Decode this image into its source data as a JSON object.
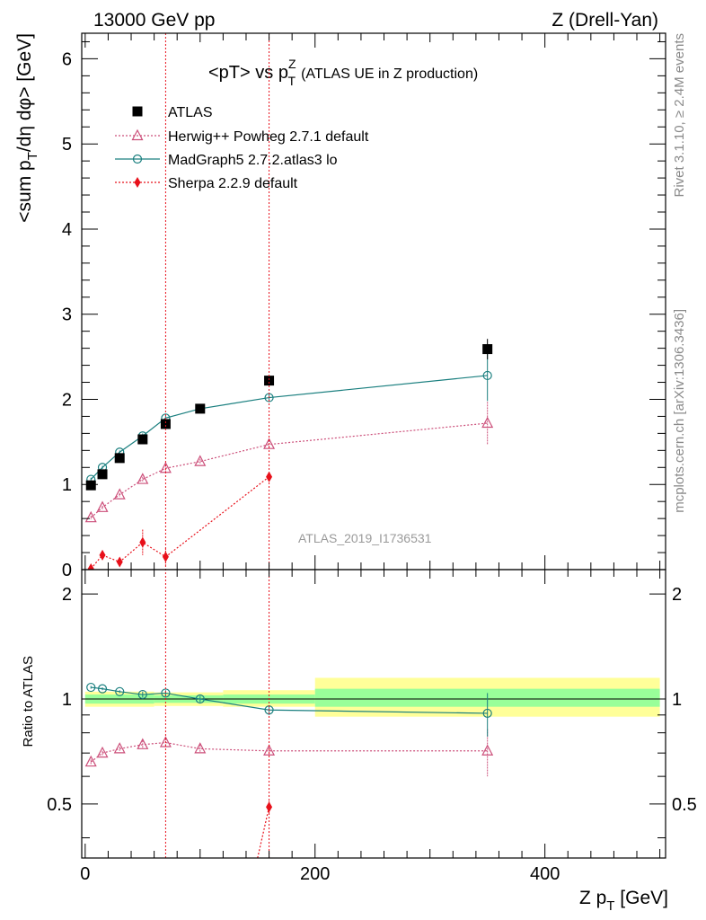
{
  "header": {
    "left": "13000 GeV pp",
    "right": "Z (Drell-Yan)"
  },
  "side_labels": {
    "top": "Rivet 3.1.10, ≥ 2.4M events",
    "bottom": "mcplots.cern.ch [arXiv:1306.3436]"
  },
  "watermark": "ATLAS_2019_I1736531",
  "colors": {
    "atlas": "#000000",
    "herwig": "#cc4f7a",
    "madgraph": "#1a7f7f",
    "sherpa": "#e8101a",
    "band_outer": "#ffff99",
    "band_inner": "#99ff99"
  },
  "chart_data": [
    {
      "type": "scatter",
      "title_main": "<pT> vs p",
      "title_sup": "Z",
      "title_sub": "T",
      "title_tail": "(ATLAS UE in Z production)",
      "ylabel": "<sum p_T/dη dφ> [GeV]",
      "ylim": [
        0,
        6.3
      ],
      "xlim": [
        -3,
        505
      ],
      "yticks": [
        "0",
        "1",
        "2",
        "3",
        "4",
        "5",
        "6"
      ],
      "vlines": [
        70,
        160
      ],
      "series": [
        {
          "name": "ATLAS",
          "x": [
            5,
            15,
            30,
            50,
            70,
            100,
            160,
            350
          ],
          "y": [
            0.99,
            1.12,
            1.31,
            1.53,
            1.71,
            1.89,
            2.22,
            2.59
          ],
          "yerr": [
            0.02,
            0.02,
            0.03,
            0.03,
            0.03,
            0.04,
            0.05,
            0.12
          ]
        },
        {
          "name": "Herwig++ Powheg 2.7.1 default",
          "x": [
            5,
            15,
            30,
            50,
            70,
            100,
            160,
            350
          ],
          "y": [
            0.61,
            0.73,
            0.88,
            1.06,
            1.19,
            1.27,
            1.47,
            1.72
          ],
          "yerr": [
            0.02,
            0.02,
            0.02,
            0.03,
            0.04,
            0.03,
            0.05,
            0.25
          ]
        },
        {
          "name": "MadGraph5 2.7.2.atlas3 lo",
          "x": [
            5,
            15,
            30,
            50,
            70,
            100,
            160,
            350
          ],
          "y": [
            1.06,
            1.2,
            1.38,
            1.57,
            1.78,
            1.89,
            2.02,
            2.28
          ],
          "yerr": [
            0.02,
            0.02,
            0.02,
            0.03,
            0.03,
            0.03,
            0.05,
            0.3
          ]
        },
        {
          "name": "Sherpa 2.2.9 default",
          "x": [
            5,
            15,
            30,
            50,
            70,
            160
          ],
          "y": [
            0.01,
            0.17,
            0.09,
            0.32,
            0.15,
            1.09
          ],
          "yerr": [
            0.02,
            0.05,
            0.05,
            0.15,
            0.1,
            0.05
          ]
        }
      ]
    },
    {
      "type": "scatter",
      "ylabel": "Ratio to ATLAS",
      "xlabel_main": "Z p",
      "xlabel_sub": "T",
      "xlabel_tail": " [GeV]",
      "ylim": [
        0.35,
        2.35
      ],
      "xticks": [
        "0",
        "200",
        "400"
      ],
      "yticks": [
        "0.5",
        "1",
        "2"
      ],
      "bands": [
        {
          "x0": 0,
          "x1": 60,
          "inner": [
            0.97,
            1.03
          ],
          "outer": [
            0.95,
            1.05
          ]
        },
        {
          "x0": 60,
          "x1": 120,
          "inner": [
            0.975,
            1.025
          ],
          "outer": [
            0.955,
            1.045
          ]
        },
        {
          "x0": 120,
          "x1": 200,
          "inner": [
            0.97,
            1.03
          ],
          "outer": [
            0.95,
            1.06
          ]
        },
        {
          "x0": 200,
          "x1": 500,
          "inner": [
            0.95,
            1.07
          ],
          "outer": [
            0.89,
            1.15
          ]
        }
      ],
      "series": [
        {
          "name": "Herwig++ Powheg 2.7.1 default",
          "x": [
            5,
            15,
            30,
            50,
            70,
            100,
            160,
            350
          ],
          "y": [
            0.66,
            0.7,
            0.72,
            0.74,
            0.75,
            0.72,
            0.71,
            0.71
          ],
          "yerr": [
            0.01,
            0.01,
            0.01,
            0.02,
            0.02,
            0.02,
            0.03,
            0.11
          ]
        },
        {
          "name": "MadGraph5 2.7.2.atlas3 lo",
          "x": [
            5,
            15,
            30,
            50,
            70,
            100,
            160,
            350
          ],
          "y": [
            1.08,
            1.07,
            1.05,
            1.03,
            1.04,
            1.0,
            0.93,
            0.91
          ],
          "yerr": [
            0.01,
            0.01,
            0.01,
            0.02,
            0.02,
            0.02,
            0.03,
            0.13
          ]
        },
        {
          "name": "Sherpa 2.2.9 default",
          "x": [
            160
          ],
          "y": [
            0.49
          ],
          "yerr": [
            0.02
          ],
          "line_from": {
            "x": 150,
            "y": 0.35
          }
        }
      ]
    }
  ]
}
